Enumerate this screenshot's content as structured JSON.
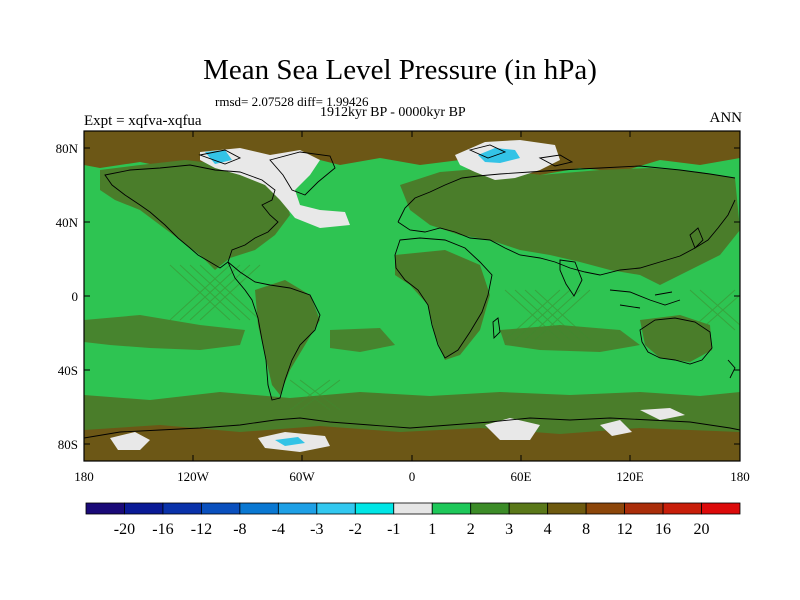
{
  "header": {
    "title": "Mean Sea Level Pressure (in hPa)",
    "stats": "rmsd= 2.07528 diff= 1.99426",
    "period": "1912kyr BP - 0000kyr BP",
    "experiment": "Expt = xqfva-xqfua",
    "season": "ANN"
  },
  "axes": {
    "lat_ticks": [
      "80N",
      "40N",
      "0",
      "40S",
      "80S"
    ],
    "lon_ticks": [
      "180",
      "120W",
      "60W",
      "0",
      "60E",
      "120E",
      "180"
    ]
  },
  "colorbar": {
    "colors": [
      "#1a0a78",
      "#0a1a96",
      "#0a32aa",
      "#0a50be",
      "#0a78d2",
      "#1ea0e6",
      "#32c8f0",
      "#00e6e6",
      "#e6e6e6",
      "#1ec85a",
      "#3c8c28",
      "#5a7819",
      "#6e5a0f",
      "#8c460a",
      "#aa2d0a",
      "#c81e0a",
      "#dc0a0a"
    ],
    "labels": [
      "-20",
      "-16",
      "-12",
      "-8",
      "-4",
      "-3",
      "-2",
      "-1",
      "1",
      "2",
      "3",
      "4",
      "8",
      "12",
      "16",
      "20"
    ]
  },
  "map": {
    "ocean_color": "#2ec452",
    "land_color": "#4a7d2a",
    "high_lat_color": "#6c5716",
    "low_color": "#e8e8e8",
    "neg_color": "#33c3e6"
  }
}
